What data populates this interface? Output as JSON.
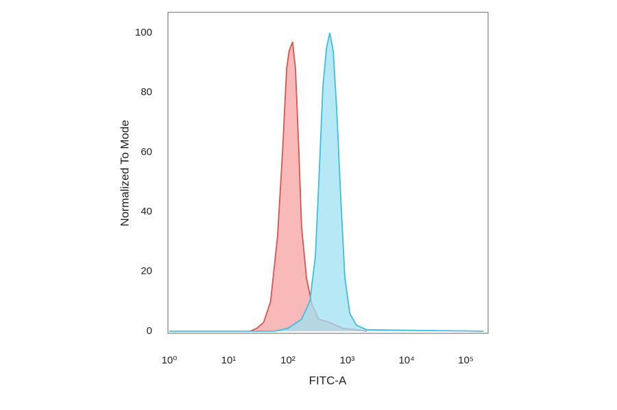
{
  "chart_data": {
    "type": "histogram-overlay",
    "x_label": "FITC-A",
    "y_label": "Normalized To Mode",
    "xscale": "log",
    "xlim": [
      0.95,
      237000
    ],
    "xticks": [
      {
        "value": 1,
        "label": "10⁰"
      },
      {
        "value": 10,
        "label": "10¹"
      },
      {
        "value": 100,
        "label": "10²"
      },
      {
        "value": 1000,
        "label": "10³"
      },
      {
        "value": 10000,
        "label": "10⁴"
      },
      {
        "value": 100000,
        "label": "10⁵"
      }
    ],
    "ylim": [
      -0.7,
      106.9
    ],
    "yticks": [
      0,
      20,
      40,
      60,
      80,
      100
    ],
    "series": [
      {
        "color": "#d9534f",
        "fill": "#f6a3a1",
        "x": [
          23,
          30,
          39,
          51,
          67,
          81,
          95,
          105,
          120,
          134,
          153,
          170,
          205,
          254,
          331,
          494,
          841,
          1432,
          2136
        ],
        "values": [
          0,
          1,
          3,
          10,
          32,
          60,
          88,
          94,
          97,
          88,
          60,
          35,
          18,
          9,
          4,
          3,
          1,
          0.5,
          0
        ]
      },
      {
        "color": "#3cbfdc",
        "fill": "#9fe0f2",
        "x": [
          1,
          59,
          100,
          170,
          234,
          290,
          340,
          389,
          447,
          507,
          579,
          662,
          776,
          910,
          1103,
          1432,
          2136,
          200000
        ],
        "values": [
          0,
          0,
          1,
          4,
          10,
          25,
          55,
          82,
          95,
          100,
          94,
          75,
          45,
          18,
          6,
          2,
          0.5,
          0
        ]
      }
    ]
  }
}
